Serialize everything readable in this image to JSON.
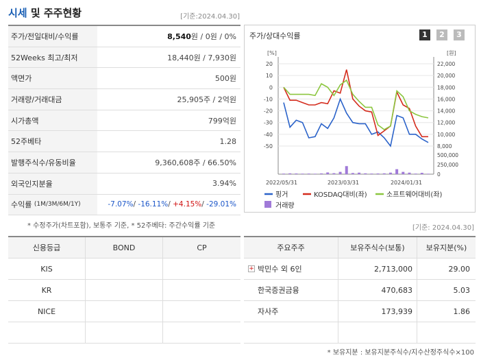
{
  "header": {
    "title_blue": "시세",
    "title_rest": " 및 주주현황",
    "date": "[기준:2024.04.30]"
  },
  "market": [
    {
      "key": "주가/전일대비/수익률",
      "value_bold": "8,540",
      "value_rest": "원 / 0원 / 0%"
    },
    {
      "key": "52Weeks 최고/최저",
      "value": "18,440원 / 7,930원"
    },
    {
      "key": "액면가",
      "value": "500원"
    },
    {
      "key": "거래량/거래대금",
      "value": "25,905주 / 2억원"
    },
    {
      "key": "시가총액",
      "value": "799억원"
    },
    {
      "key": "52주베타",
      "value": "1.28"
    },
    {
      "key": "발행주식수/유동비율",
      "value": "9,360,608주 / 66.50%"
    },
    {
      "key": "외국인지분율",
      "value": "3.94%"
    }
  ],
  "returns": {
    "key": "수익률",
    "key_small": "(1M/3M/6M/1Y)",
    "v1": "-7.07%",
    "v2": "-16.11%",
    "v3": "+4.15%",
    "v4": "-29.01%",
    "sep": "/ "
  },
  "note1": "* 수정주가(차트포함), 보통주 기준, * 52주베타: 주간수익률 기준",
  "chart": {
    "title": "주가/상대수익률",
    "pages": [
      "1",
      "2",
      "3"
    ],
    "left_unit": "[%]",
    "right_unit": "[원]",
    "left_ticks": [
      "20",
      "10",
      "0",
      "-10",
      "-20",
      "-30",
      "-40",
      "-50"
    ],
    "right_ticks": [
      "22,000",
      "20,000",
      "18,000",
      "16,000",
      "14,000",
      "12,000",
      "10,000",
      "8,000"
    ],
    "vol_ticks": [
      "500,000",
      "250,000",
      "0"
    ],
    "x_ticks": [
      "2022/05/31",
      "2023/03/31",
      "2024/01/31"
    ],
    "legend": [
      "핑거",
      "KOSDAQ대비(좌)",
      "소프트웨어대비(좌)",
      "거래량"
    ],
    "colors": {
      "price": "#2a62c9",
      "kosdaq": "#d42b1c",
      "sw": "#8cc63f",
      "volume": "#a07ad8"
    }
  },
  "chart_data": {
    "type": "line",
    "series": [
      {
        "name": "핑거",
        "values": [
          -13,
          -34,
          -28,
          -30,
          -43,
          -42,
          -31,
          -35,
          -26,
          -10,
          -22,
          -30,
          -31,
          -31,
          -40,
          -38,
          -43,
          -50,
          -24,
          -26,
          -40,
          -40,
          -44,
          -47
        ]
      },
      {
        "name": "KOSDAQ대비(좌)",
        "values": [
          0,
          -11,
          -11,
          -13,
          -15,
          -15,
          -13,
          -14,
          -3,
          -5,
          15,
          -10,
          -16,
          -20,
          -21,
          -41,
          -37,
          -33,
          -4,
          -15,
          -18,
          -33,
          -42,
          -42
        ]
      },
      {
        "name": "소프트웨어대비(좌)",
        "values": [
          0,
          -6,
          -6,
          -6,
          -6,
          -7,
          3,
          0,
          -7,
          2,
          6,
          -6,
          -12,
          -17,
          -17,
          -32,
          -36,
          -33,
          -3,
          -8,
          -20,
          -23,
          -25,
          -26
        ]
      },
      {
        "name": "거래량",
        "values": [
          15000,
          22000,
          18000,
          14000,
          16000,
          12000,
          20000,
          45000,
          26000,
          60000,
          210000,
          30000,
          40000,
          22000,
          16000,
          18000,
          22000,
          40000,
          130000,
          60000,
          40000,
          15000,
          35000,
          12000
        ]
      }
    ],
    "left_ylim": [
      -50,
      20
    ],
    "right_ylim": [
      8000,
      22000
    ],
    "volume_ylim": [
      0,
      500000
    ]
  },
  "credit": {
    "headers": [
      "신용등급",
      "BOND",
      "CP"
    ],
    "rows": [
      [
        "KIS",
        "",
        ""
      ],
      [
        "KR",
        "",
        ""
      ],
      [
        "NICE",
        "",
        ""
      ],
      [
        "",
        "",
        ""
      ]
    ]
  },
  "holders": {
    "date": "[기준: 2024.04.30]",
    "headers": [
      "주요주주",
      "보유주식수(보통)",
      "보유지분(%)"
    ],
    "rows": [
      [
        "박민수 외 6인",
        "2,713,000",
        "29.00"
      ],
      [
        "한국증권금융",
        "470,683",
        "5.03"
      ],
      [
        "자사주",
        "173,939",
        "1.86"
      ]
    ]
  },
  "note2": "* 보유지분 : 보유지분주식수/지수산정주식수×100"
}
